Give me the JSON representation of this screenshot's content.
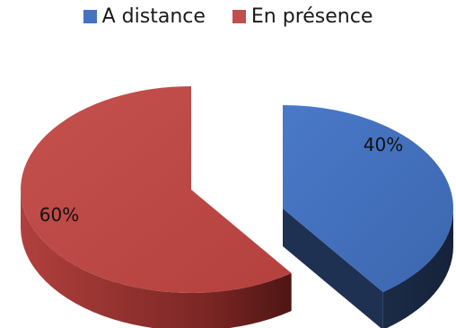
{
  "chart_data": {
    "type": "pie",
    "style": "3d-exploded",
    "legend_position": "top",
    "slices": [
      {
        "label": "A distance",
        "value": 40,
        "display": "40%",
        "color": "#4472C4",
        "side_color": "#1F3153"
      },
      {
        "label": "En présence",
        "value": 60,
        "display": "60%",
        "color": "#C0504D",
        "side_color": "#6E1F1D"
      }
    ]
  }
}
